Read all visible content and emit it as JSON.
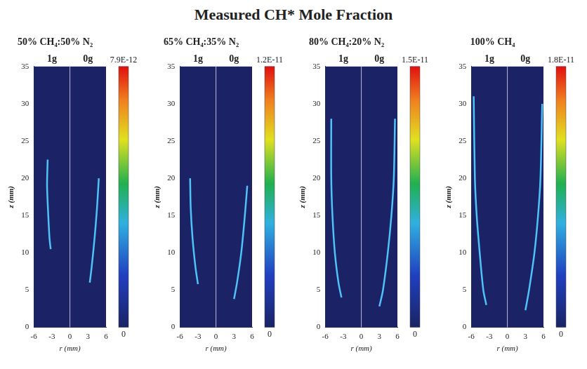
{
  "title": "Measured CH* Mole Fraction",
  "chart_data": [
    {
      "type": "line",
      "title": "50% CH₄:50% N₂",
      "xlabel": "r (mm)",
      "ylabel": "z (mm)",
      "xlim": [
        -6,
        6
      ],
      "xticks": [
        -6,
        -3,
        0,
        3,
        6
      ],
      "ylim": [
        0,
        35
      ],
      "yticks": [
        0,
        5,
        10,
        15,
        20,
        25,
        30,
        35
      ],
      "grid": false,
      "series": [
        {
          "name": "1g",
          "color": "#4fc3f7",
          "x": [
            -3.2,
            -3.4,
            -3.6,
            -3.8,
            -3.7
          ],
          "values": [
            10.5,
            12,
            15,
            19,
            22.5
          ]
        },
        {
          "name": "0g",
          "color": "#4fc3f7",
          "x": [
            3.3,
            3.6,
            4.1,
            4.5,
            4.8
          ],
          "values": [
            6,
            8,
            12,
            16,
            20
          ]
        }
      ],
      "colorbar": {
        "range": [
          0,
          7.9e-12
        ],
        "ticks": [
          0,
          {
            "value": 7.9e-12,
            "label": "7.9E-12"
          }
        ]
      }
    },
    {
      "type": "line",
      "title": "65% CH₄:35% N₂",
      "xlabel": "r (mm)",
      "ylabel": "z (mm)",
      "xlim": [
        -6,
        6
      ],
      "xticks": [
        -6,
        -3,
        0,
        3,
        6
      ],
      "ylim": [
        0,
        35
      ],
      "yticks": [
        0,
        5,
        10,
        15,
        20,
        25,
        30,
        35
      ],
      "grid": false,
      "series": [
        {
          "name": "1g",
          "color": "#4fc3f7",
          "x": [
            -3.0,
            -3.4,
            -3.9,
            -4.2,
            -4.3
          ],
          "values": [
            5.8,
            8,
            12,
            16,
            20
          ]
        },
        {
          "name": "0g",
          "color": "#4fc3f7",
          "x": [
            3.0,
            3.5,
            4.2,
            4.8,
            5.2
          ],
          "values": [
            3.8,
            6,
            10,
            15,
            19
          ]
        }
      ],
      "colorbar": {
        "range": [
          0,
          1.2e-11
        ],
        "ticks": [
          0,
          {
            "value": 1.2e-11,
            "label": "1.2E-11"
          }
        ]
      }
    },
    {
      "type": "line",
      "title": "80% CH₄:20% N₂",
      "xlabel": "r (mm)",
      "ylabel": "z (mm)",
      "xlim": [
        -6,
        6
      ],
      "xticks": [
        -6,
        -3,
        0,
        3,
        6
      ],
      "ylim": [
        0,
        35
      ],
      "yticks": [
        0,
        5,
        10,
        15,
        20,
        25,
        30,
        35
      ],
      "grid": false,
      "series": [
        {
          "name": "1g",
          "color": "#4fc3f7",
          "x": [
            -3.3,
            -3.8,
            -4.4,
            -4.8,
            -5.0,
            -5.0
          ],
          "values": [
            4,
            6,
            10,
            15,
            20,
            28
          ]
        },
        {
          "name": "0g",
          "color": "#4fc3f7",
          "x": [
            3.0,
            3.6,
            4.4,
            5.0,
            5.4,
            5.6
          ],
          "values": [
            2.8,
            5,
            10,
            15,
            20,
            28
          ]
        }
      ],
      "colorbar": {
        "range": [
          0,
          1.5e-11
        ],
        "ticks": [
          0,
          {
            "value": 1.5e-11,
            "label": "1.5E-11"
          }
        ]
      }
    },
    {
      "type": "line",
      "title": "100% CH₄",
      "xlabel": "r (mm)",
      "ylabel": "z (mm)",
      "xlim": [
        -6,
        6
      ],
      "xticks": [
        -6,
        -3,
        0,
        3,
        6
      ],
      "ylim": [
        0,
        35
      ],
      "yticks": [
        0,
        5,
        10,
        15,
        20,
        25,
        30,
        35
      ],
      "grid": false,
      "series": [
        {
          "name": "1g",
          "color": "#4fc3f7",
          "x": [
            -3.5,
            -4.0,
            -4.6,
            -5.1,
            -5.4,
            -5.6
          ],
          "values": [
            3,
            5,
            10,
            15,
            20,
            31
          ]
        },
        {
          "name": "0g",
          "color": "#4fc3f7",
          "x": [
            3.0,
            3.6,
            4.5,
            5.1,
            5.5,
            5.8
          ],
          "values": [
            2.3,
            5,
            10,
            15,
            20,
            30
          ]
        }
      ],
      "colorbar": {
        "range": [
          0,
          1.8e-11
        ],
        "ticks": [
          0,
          {
            "value": 1.8e-11,
            "label": "1.8E-11"
          }
        ]
      }
    }
  ]
}
